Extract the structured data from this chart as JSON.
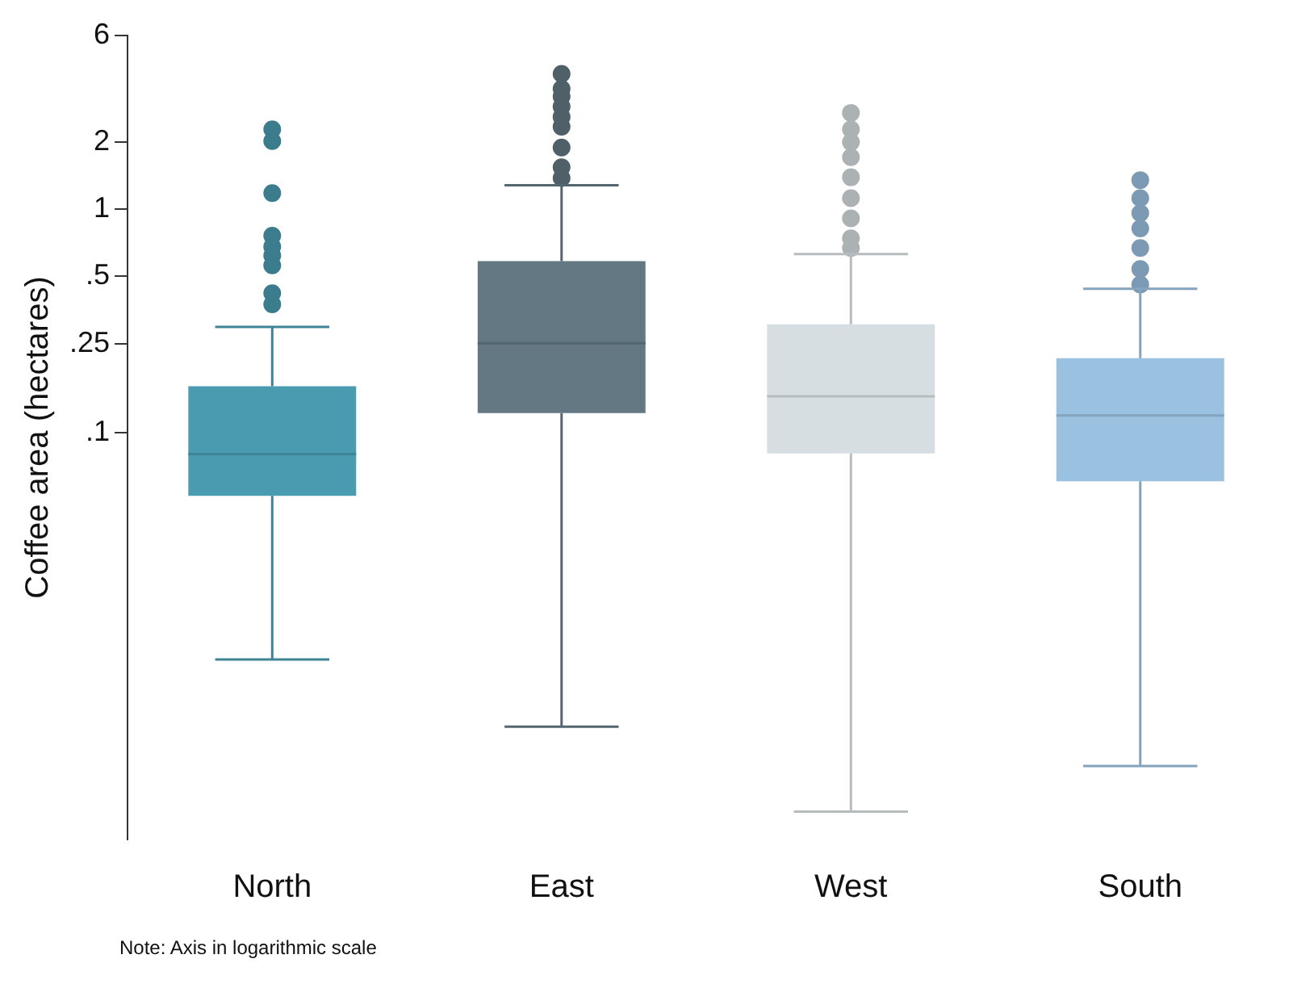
{
  "chart_data": {
    "type": "box",
    "ylabel": "Coffee area (hectares)",
    "categories": [
      "North",
      "East",
      "West",
      "South"
    ],
    "colors": [
      "#4a9bb0",
      "#637883",
      "#d7dee1",
      "#9bc1e0"
    ],
    "boxes": [
      {
        "low": 0.0096,
        "q1": 0.052,
        "median": 0.08,
        "q3": 0.161,
        "high": 0.297,
        "outliers": [
          2.28,
          2.02,
          1.18,
          0.76,
          0.68,
          0.62,
          0.56,
          0.42,
          0.375
        ]
      },
      {
        "low": 0.0048,
        "q1": 0.122,
        "median": 0.251,
        "q3": 0.585,
        "high": 1.28,
        "outliers": [
          4.04,
          3.46,
          3.2,
          2.88,
          2.59,
          2.34,
          1.89,
          1.54,
          1.38
        ]
      },
      {
        "low": 0.002,
        "q1": 0.0805,
        "median": 0.145,
        "q3": 0.305,
        "high": 0.63,
        "outliers": [
          2.7,
          2.28,
          2.0,
          1.71,
          1.39,
          1.12,
          0.91,
          0.74,
          0.67
        ]
      },
      {
        "low": 0.0032,
        "q1": 0.0604,
        "median": 0.119,
        "q3": 0.215,
        "high": 0.44,
        "outliers": [
          1.35,
          1.12,
          0.96,
          0.82,
          0.67,
          0.54,
          0.46
        ]
      }
    ],
    "log": true,
    "ylim": [
      0.0015,
      6
    ],
    "yticks": [
      {
        "value": 0.1,
        "label": ".1"
      },
      {
        "value": 0.25,
        "label": ".25"
      },
      {
        "value": 0.5,
        "label": ".5"
      },
      1,
      2,
      6
    ],
    "grid": false,
    "legend": false,
    "annotations": [
      "Note: Axis in logarithmic scale"
    ]
  }
}
